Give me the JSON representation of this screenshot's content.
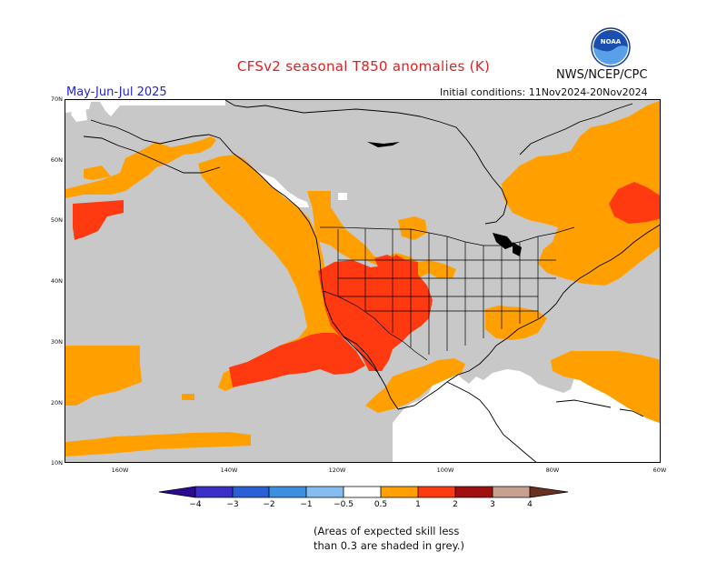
{
  "header": {
    "title": "CFSv2 seasonal T850 anomalies (K)",
    "agency": "NWS/NCEP/CPC",
    "season": "May-Jun-Jul 2025",
    "initial_conditions": "Initial conditions: 11Nov2024-20Nov2024",
    "logo_text": "NOAA"
  },
  "axes": {
    "lat_labels": [
      "70N",
      "60N",
      "50N",
      "40N",
      "30N",
      "20N",
      "10N"
    ],
    "lon_labels": [
      "160W",
      "140W",
      "120W",
      "100W",
      "80W",
      "60W"
    ]
  },
  "colorbar": {
    "labels": [
      "−4",
      "−3",
      "−2",
      "−1",
      "−0.5",
      "0.5",
      "1",
      "2",
      "3",
      "4"
    ],
    "colors": {
      "below_-4": "#2a0a90",
      "-4_-3": "#3a2fc6",
      "-3_-2": "#2a5fd6",
      "-2_-1": "#3c8ee0",
      "-1_-0.5": "#86bcf0",
      "-0.5_0.5": "#ffffff",
      "0.5_1": "#ffa000",
      "1_2": "#ff3a10",
      "2_3": "#a01010",
      "3_4": "#c8a090",
      "above_4": "#6a3020"
    }
  },
  "map_colors": {
    "low_skill": "#c8c8c8",
    "anom_0_5_to_1": "#ffa000",
    "anom_1_to_2": "#ff3a10",
    "neutral": "#ffffff",
    "coast_lines": "#000000"
  },
  "note": {
    "line1": "(Areas of expected skill less",
    "line2": "than 0.3 are shaded in grey.)"
  }
}
